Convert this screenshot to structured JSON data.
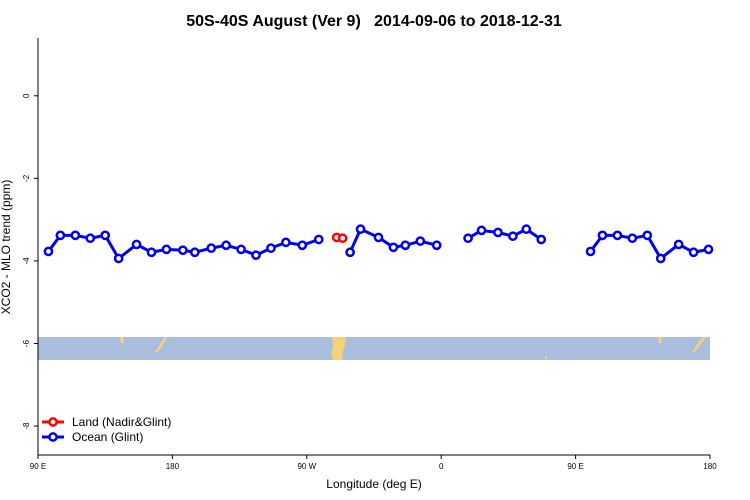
{
  "chart_data": {
    "type": "line",
    "title": "50S-40S August (Ver 9)   2014-09-06 to 2018-12-31",
    "x_label": "Longitude (deg E)",
    "y_label": "XCO2 - MLO trend (ppm)",
    "xlim": [
      90,
      540
    ],
    "ylim": [
      -8.7,
      1.4
    ],
    "xticks": [
      {
        "value": 90,
        "label": "90 E"
      },
      180,
      {
        "value": 270,
        "label": "90 W"
      },
      {
        "value": 360,
        "label": "0"
      },
      {
        "value": 450,
        "label": "90 E"
      },
      {
        "value": 540,
        "label": "180"
      }
    ],
    "yticks": [
      0,
      -2,
      -4,
      -6,
      -8
    ],
    "legend": "bottom-left",
    "series": [
      {
        "name": "Land (Nadir&Glint)",
        "color": "#ff0000",
        "x": [
          290,
          294
        ],
        "values": [
          -3.43,
          -3.45
        ]
      },
      {
        "name": "Ocean (Glint)",
        "color": "#0000ee",
        "x": [
          97,
          105,
          115,
          125,
          135,
          144,
          156,
          166,
          176,
          187,
          195,
          206,
          216,
          226,
          236,
          246,
          256,
          267,
          278,
          null,
          299,
          306,
          318,
          328,
          336,
          346,
          357,
          null,
          378,
          387,
          398,
          408,
          417,
          427,
          null,
          460,
          468,
          478,
          488,
          498,
          507,
          519,
          529,
          539
        ],
        "values": [
          -3.77,
          -3.38,
          -3.38,
          -3.45,
          -3.38,
          -3.94,
          -3.6,
          -3.79,
          -3.72,
          -3.74,
          -3.79,
          -3.69,
          -3.62,
          -3.72,
          -3.86,
          -3.69,
          -3.55,
          -3.62,
          -3.48,
          null,
          -3.79,
          -3.23,
          -3.43,
          -3.67,
          -3.62,
          -3.52,
          -3.62,
          null,
          -3.45,
          -3.26,
          -3.31,
          -3.4,
          -3.23,
          -3.48,
          null,
          -3.77,
          -3.38,
          -3.38,
          -3.45,
          -3.38,
          -3.94,
          -3.6,
          -3.79,
          -3.72
        ]
      }
    ]
  }
}
